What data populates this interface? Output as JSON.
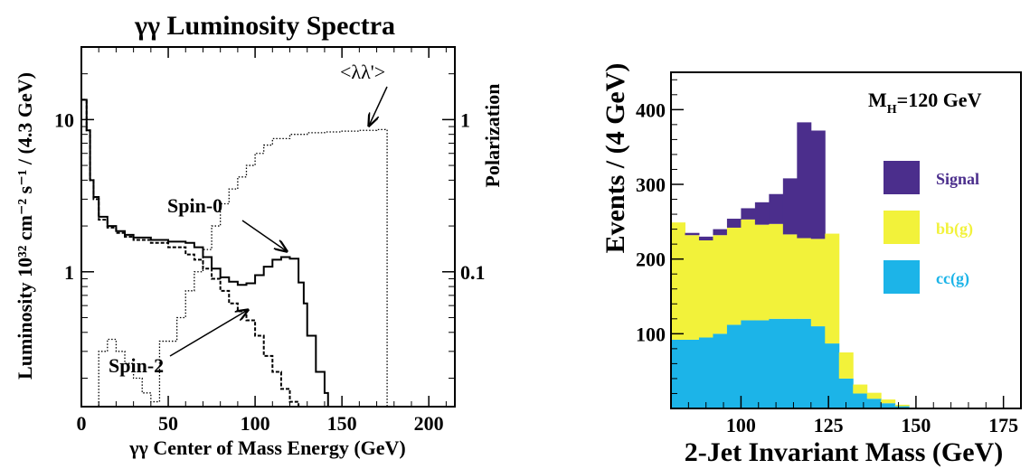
{
  "chart_data": [
    {
      "type": "line",
      "title": "γγ Luminosity Spectra",
      "xlabel": "γγ Center of Mass Energy (GeV)",
      "ylabel": "Luminosity 10³² cm⁻² s⁻¹ / (4.3 GeV)",
      "y2label": "Polarization",
      "xlim": [
        0,
        215
      ],
      "ylim": [
        0.13,
        30
      ],
      "yscale": "log",
      "x_ticks": [
        "0",
        "50",
        "100",
        "150",
        "200"
      ],
      "y_ticks": [
        "1",
        "10"
      ],
      "y2_ticks": [
        "0.1",
        "1"
      ],
      "annotations": {
        "spin0": "Spin-0",
        "spin2": "Spin-2",
        "polar": "<λλ'>"
      },
      "series": [
        {
          "name": "Spin-0",
          "style": "solid",
          "x": [
            0,
            3,
            3,
            5,
            5,
            7,
            7,
            10,
            15,
            20,
            25,
            30,
            40,
            50,
            60,
            65,
            70,
            75,
            80,
            85,
            90,
            95,
            100,
            105,
            110,
            115,
            120,
            125,
            128,
            130,
            135,
            140,
            142,
            145
          ],
          "y": [
            13.5,
            13.5,
            8.5,
            8.5,
            4,
            4,
            3.1,
            2.3,
            2.0,
            1.85,
            1.75,
            1.68,
            1.62,
            1.58,
            1.55,
            1.45,
            1.25,
            1.05,
            0.92,
            0.86,
            0.82,
            0.84,
            0.95,
            1.08,
            1.2,
            1.25,
            1.22,
            0.85,
            0.62,
            0.38,
            0.22,
            0.16,
            0.13,
            0.13
          ]
        },
        {
          "name": "Spin-2",
          "style": "dashed",
          "x": [
            0,
            3,
            3,
            5,
            5,
            7,
            7,
            10,
            15,
            20,
            25,
            30,
            40,
            50,
            60,
            65,
            70,
            75,
            80,
            85,
            90,
            95,
            100,
            105,
            110,
            115,
            120,
            125
          ],
          "y": [
            13.5,
            13.5,
            8.5,
            8.5,
            4,
            4,
            3.0,
            2.2,
            1.95,
            1.8,
            1.7,
            1.62,
            1.55,
            1.45,
            1.3,
            1.2,
            1.05,
            0.9,
            0.75,
            0.62,
            0.55,
            0.48,
            0.38,
            0.28,
            0.22,
            0.17,
            0.14,
            0.13
          ]
        },
        {
          "name": "<λλ'>",
          "style": "dotted",
          "axis": "y2",
          "x": [
            5,
            10,
            15,
            20,
            25,
            30,
            35,
            40,
            45,
            55,
            60,
            65,
            70,
            75,
            80,
            85,
            90,
            95,
            100,
            105,
            110,
            120,
            130,
            140,
            150,
            160,
            170,
            175,
            176
          ],
          "y": [
            0.013,
            0.03,
            0.036,
            0.03,
            0.025,
            0.02,
            0.016,
            0.014,
            0.035,
            0.05,
            0.075,
            0.1,
            0.14,
            0.2,
            0.28,
            0.35,
            0.42,
            0.5,
            0.6,
            0.68,
            0.75,
            0.8,
            0.82,
            0.83,
            0.84,
            0.85,
            0.86,
            0.85,
            0.013
          ]
        }
      ]
    },
    {
      "type": "bar",
      "stacked": true,
      "title": "",
      "xlabel": "2-Jet Invariant Mass (GeV)",
      "ylabel": "Events / (4 GeV)",
      "xlim": [
        80,
        180
      ],
      "ylim": [
        0,
        450
      ],
      "x_ticks": [
        "100",
        "125",
        "150",
        "175"
      ],
      "y_ticks": [
        "100",
        "200",
        "300",
        "400"
      ],
      "annotation": "M_H=120 GeV",
      "annotation_main": "M",
      "annotation_sub": "H",
      "annotation_rest": "=120 GeV",
      "bin_edges": [
        80,
        84,
        88,
        92,
        96,
        100,
        104,
        108,
        112,
        116,
        120,
        124,
        128,
        132,
        136,
        140,
        144,
        148,
        152
      ],
      "series": [
        {
          "name": "Signal",
          "color": "#4b2e8c",
          "values": [
            0,
            3,
            5,
            8,
            12,
            15,
            30,
            40,
            75,
            155,
            145,
            0,
            0,
            0,
            0,
            0,
            0,
            0
          ]
        },
        {
          "name": "bb(g)",
          "color": "#f2f23a",
          "values": [
            157,
            140,
            130,
            132,
            130,
            135,
            128,
            127,
            113,
            108,
            117,
            147,
            35,
            12,
            8,
            5,
            2,
            0
          ]
        },
        {
          "name": "cc(g)",
          "color": "#1cb4e8",
          "values": [
            92,
            92,
            95,
            100,
            112,
            118,
            118,
            120,
            120,
            120,
            110,
            87,
            40,
            20,
            13,
            7,
            3,
            0
          ]
        }
      ]
    }
  ]
}
